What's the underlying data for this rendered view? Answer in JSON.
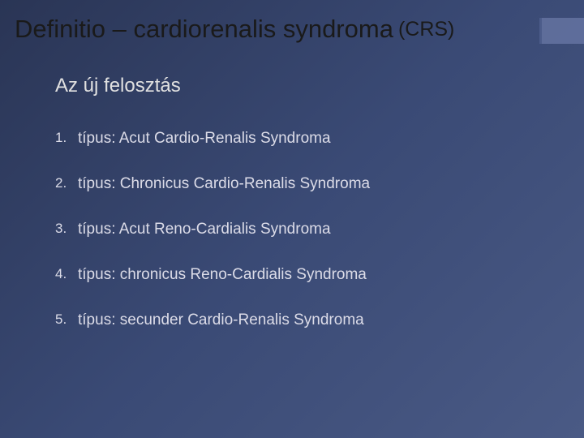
{
  "slide": {
    "title_main": "Definitio – cardiorenalis syndroma",
    "title_sub": "(CRS)",
    "subtitle": "Az új felosztás",
    "items": [
      "típus: Acut Cardio-Renalis Syndroma",
      "típus: Chronicus Cardio-Renalis Syndroma",
      "típus: Acut Reno-Cardialis Syndroma",
      "típus: chronicus Reno-Cardialis Syndroma",
      "típus: secunder Cardio-Renalis Syndroma"
    ],
    "colors": {
      "background_start": "#2a3555",
      "background_end": "#4a5a85",
      "title_text": "#1a1a1a",
      "body_text": "#dcdce8",
      "accent_bar": "#7a88b8"
    },
    "typography": {
      "title_fontsize": 31,
      "title_sub_fontsize": 25,
      "subtitle_fontsize": 24,
      "item_fontsize": 19,
      "number_fontsize": 17
    }
  }
}
